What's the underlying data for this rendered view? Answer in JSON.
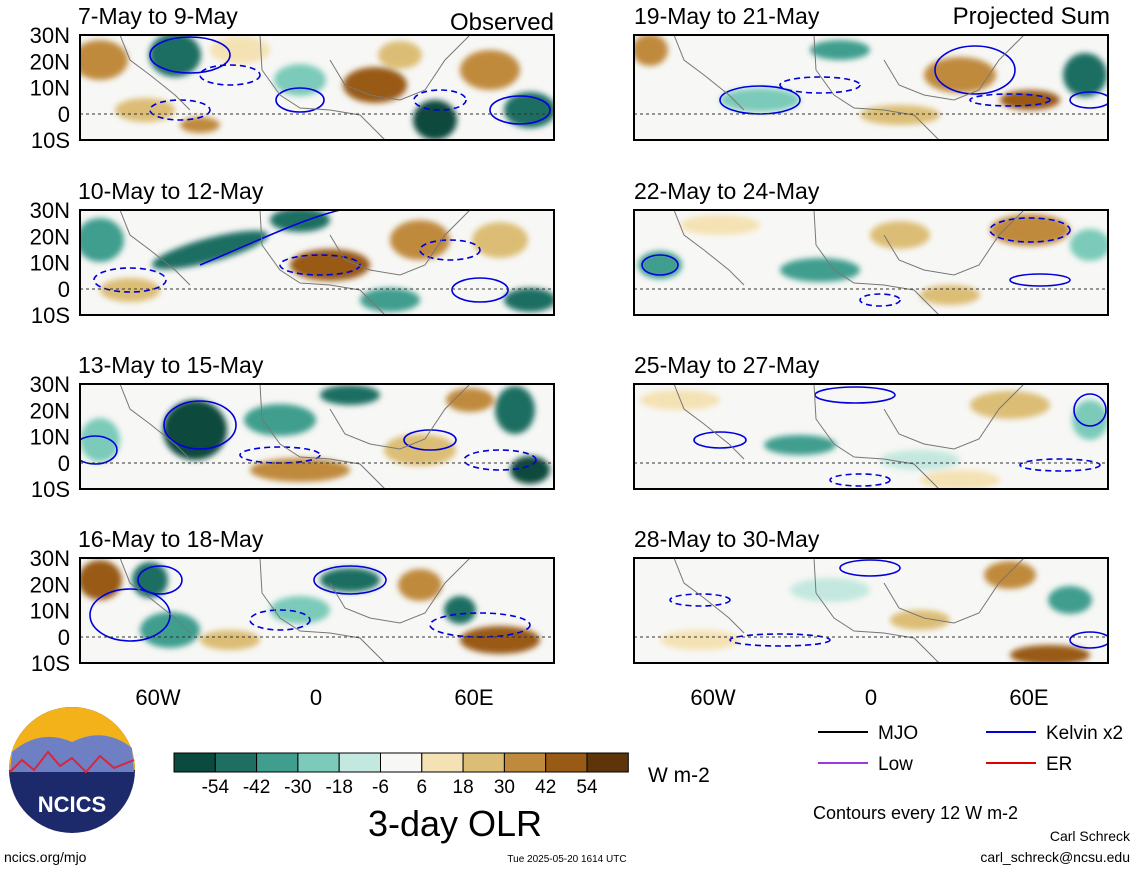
{
  "column_labels": {
    "left": "Observed",
    "right": "Projected Sum"
  },
  "panels_left": [
    {
      "period": "7-May to 9-May"
    },
    {
      "period": "10-May to 12-May"
    },
    {
      "period": "13-May to 15-May"
    },
    {
      "period": "16-May to 18-May"
    }
  ],
  "panels_right": [
    {
      "period": "19-May to 21-May"
    },
    {
      "period": "22-May to 24-May"
    },
    {
      "period": "25-May to 27-May"
    },
    {
      "period": "28-May to 30-May"
    }
  ],
  "lat_ticks": [
    "30N",
    "20N",
    "10N",
    "0",
    "10S"
  ],
  "lon_ticks": [
    "60W",
    "0",
    "60E"
  ],
  "colorbar": {
    "ticks": [
      "-54",
      "-42",
      "-30",
      "-18",
      "-6",
      "6",
      "18",
      "30",
      "42",
      "54"
    ],
    "colors": [
      "#0b4a3e",
      "#1e6e62",
      "#3f9e8e",
      "#7ccab9",
      "#c3e8df",
      "#f7f7f5",
      "#f5e2b4",
      "#dcbd75",
      "#c08a3d",
      "#995a15",
      "#5e3508"
    ],
    "unit": "W m-2",
    "title": "3-day OLR"
  },
  "legend": [
    {
      "label": "MJO",
      "color": "#000000"
    },
    {
      "label": "Kelvin x2",
      "color": "#0000dd"
    },
    {
      "label": "Low",
      "color": "#9a3ae0"
    },
    {
      "label": "ER",
      "color": "#dd0000"
    }
  ],
  "contour_note": "Contours every 12 W m-2",
  "logo": {
    "text": "NCICS"
  },
  "footer": {
    "url": "ncics.org/mjo",
    "timestamp": "Tue 2025-05-20 1614 UTC",
    "author": "Carl Schreck",
    "email": "carl_schreck@ncsu.edu"
  }
}
